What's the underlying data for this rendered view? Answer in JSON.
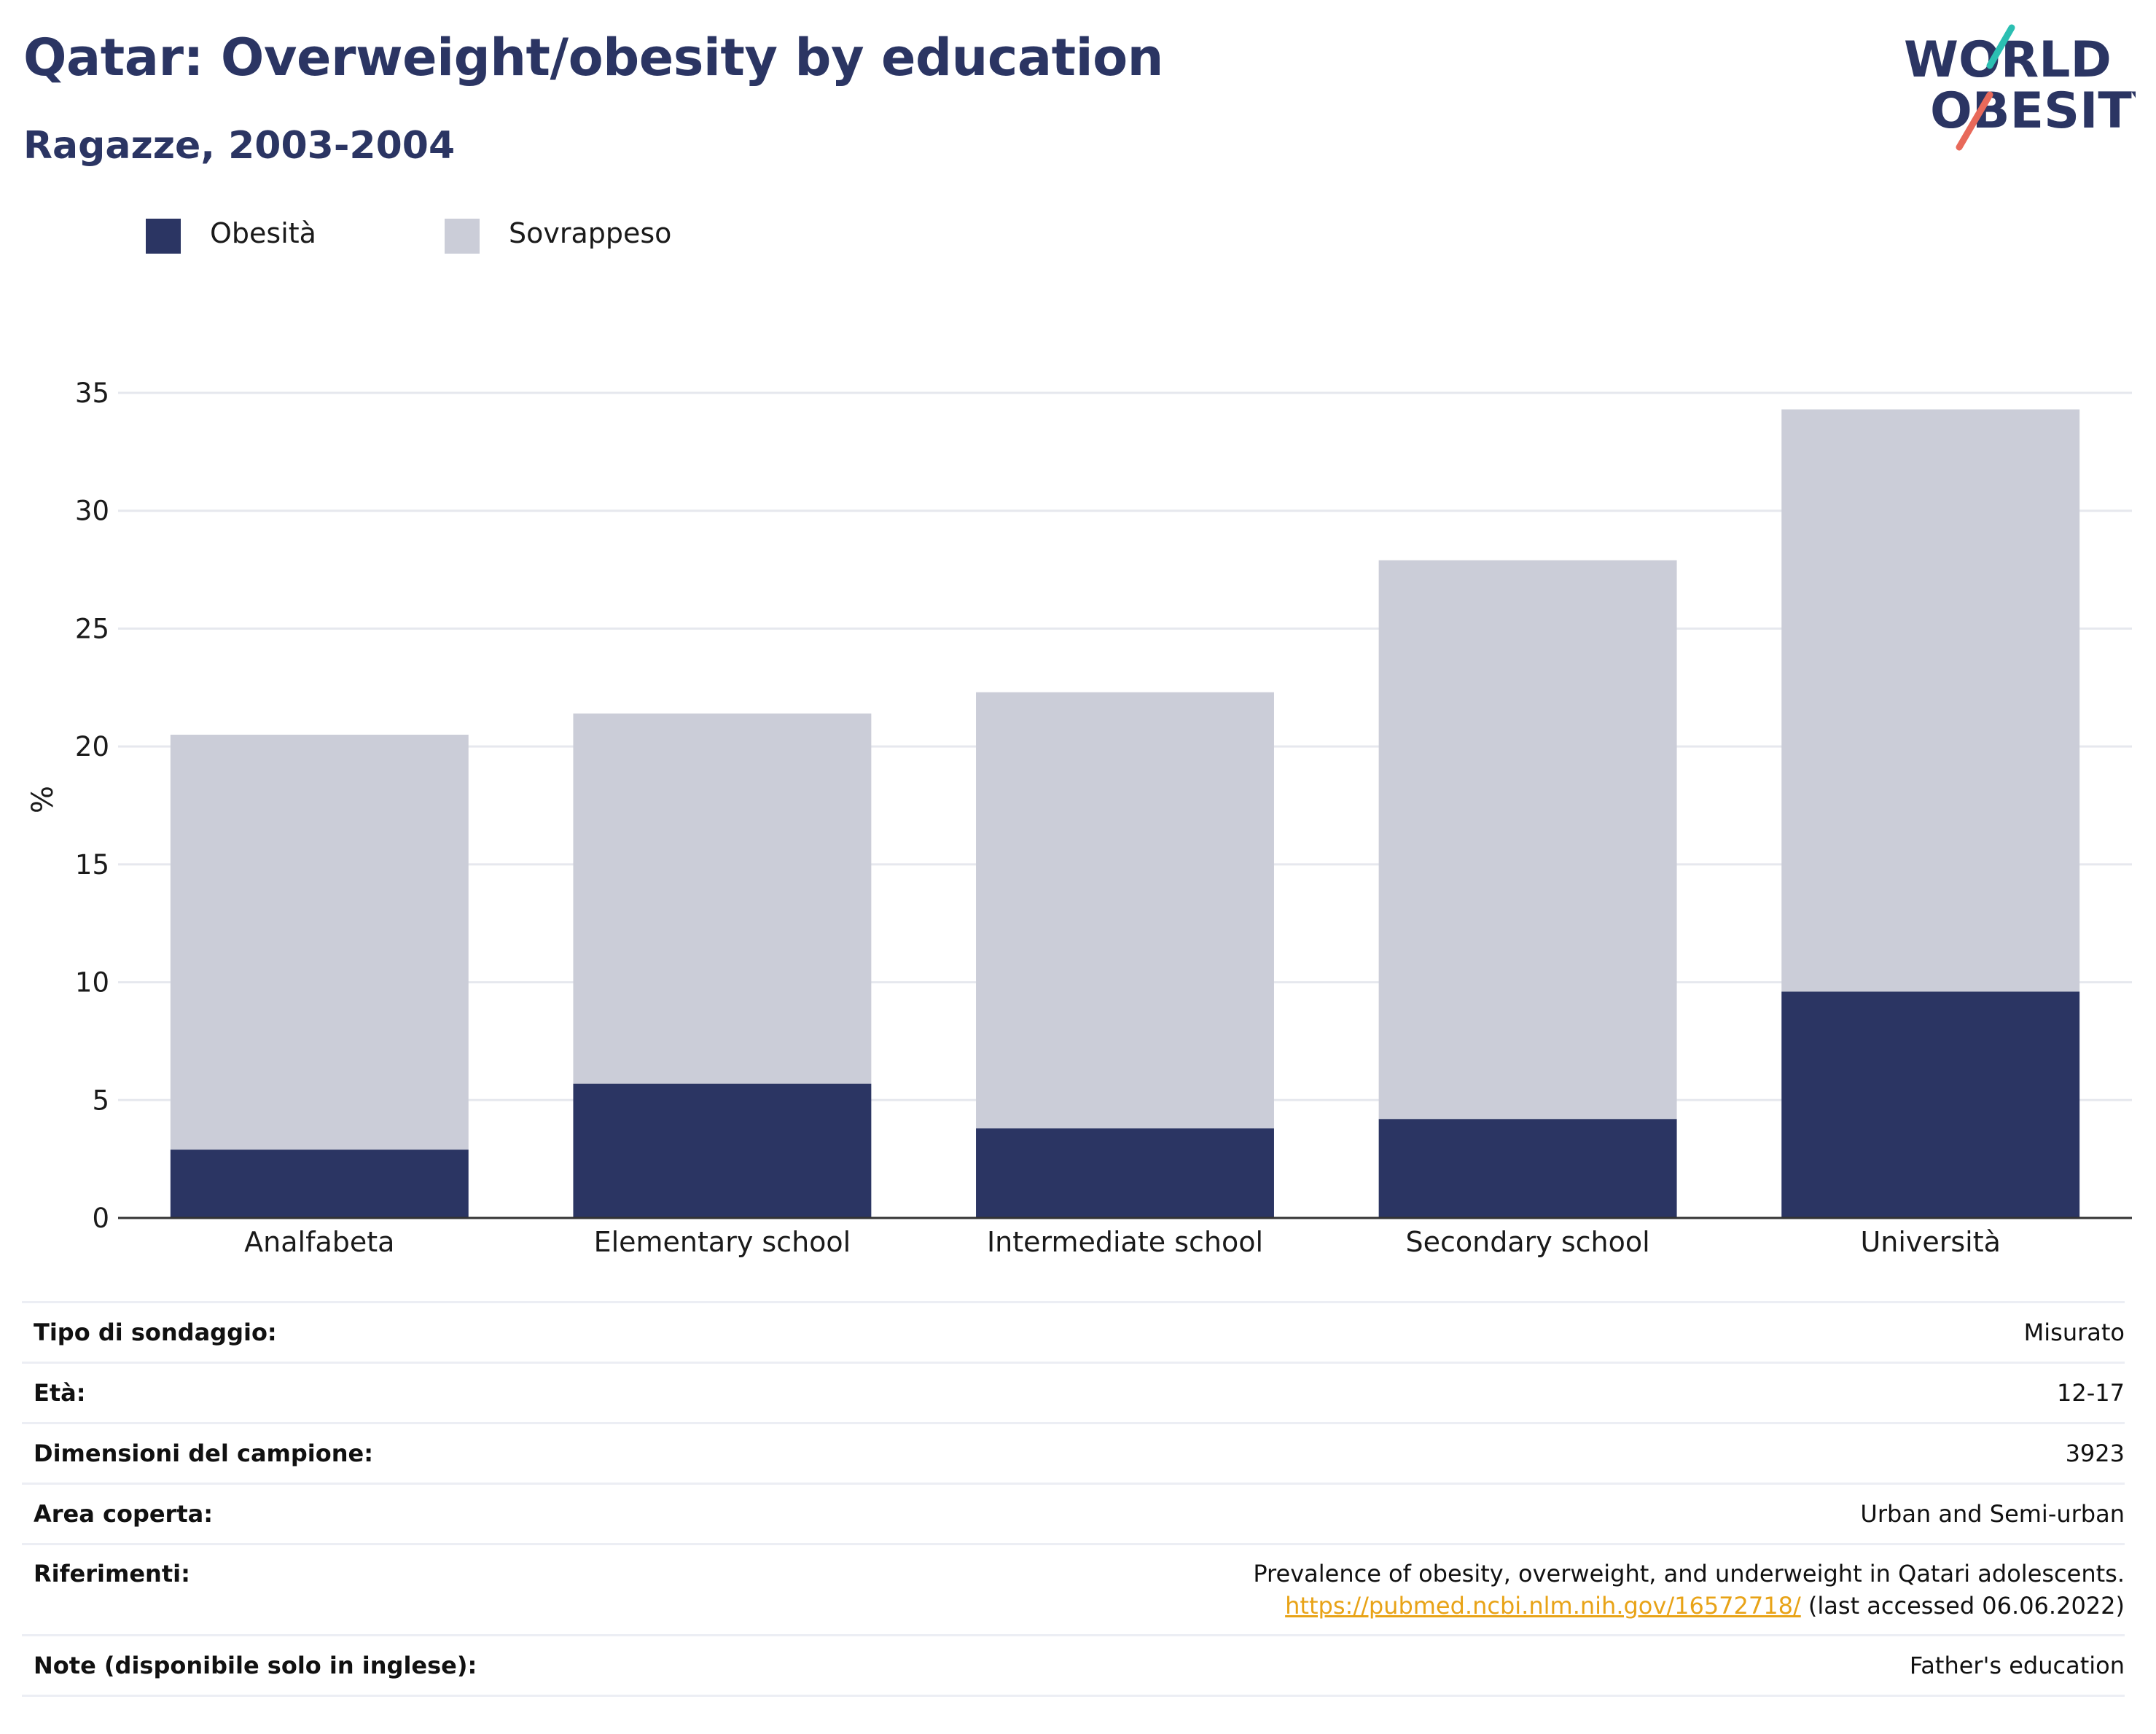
{
  "header": {
    "title": "Qatar: Overweight/obesity by education",
    "subtitle": "Ragazze, 2003-2004"
  },
  "logo": {
    "line1": "WORLD",
    "line2": "OBESITY",
    "colors": {
      "text": "#2b3563",
      "slash_top": "#2bbfb2",
      "slash_bottom": "#e8695a"
    }
  },
  "legend": [
    {
      "label": "Obesità",
      "color": "#2b3563"
    },
    {
      "label": "Sovrappeso",
      "color": "#cbcdd8"
    }
  ],
  "chart_data": {
    "type": "bar",
    "stacked": true,
    "title": "Qatar: Overweight/obesity by education",
    "subtitle": "Ragazze, 2003-2004",
    "ylabel": "%",
    "xlabel": "",
    "ylim": [
      0,
      35
    ],
    "yticks": [
      0,
      5,
      10,
      15,
      20,
      25,
      30,
      35
    ],
    "grid": true,
    "legend_position": "top-left",
    "categories": [
      "Analfabeta",
      "Elementary school",
      "Intermediate school",
      "Secondary school",
      "Università"
    ],
    "series": [
      {
        "name": "Obesità",
        "color": "#2b3563",
        "values": [
          2.9,
          5.7,
          3.8,
          4.2,
          9.6
        ]
      },
      {
        "name": "Sovrappeso",
        "color": "#cbcdd8",
        "values": [
          17.6,
          15.7,
          18.5,
          23.7,
          24.7
        ]
      }
    ],
    "totals": [
      20.5,
      21.4,
      22.3,
      27.9,
      34.3
    ]
  },
  "info": [
    {
      "key": "Tipo di sondaggio:",
      "value": "Misurato"
    },
    {
      "key": "Età:",
      "value": "12-17"
    },
    {
      "key": "Dimensioni del campione:",
      "value": "3923"
    },
    {
      "key": "Area coperta:",
      "value": "Urban and Semi-urban"
    },
    {
      "key": "Riferimenti:",
      "value_before": "Prevalence of obesity, overweight, and underweight in Qatari adolescents.",
      "link": "https://pubmed.ncbi.nlm.nih.gov/16572718/",
      "value_after": "(last accessed 06.06.2022)"
    },
    {
      "key": "Note (disponibile solo in inglese):",
      "value": "Father's education"
    }
  ]
}
